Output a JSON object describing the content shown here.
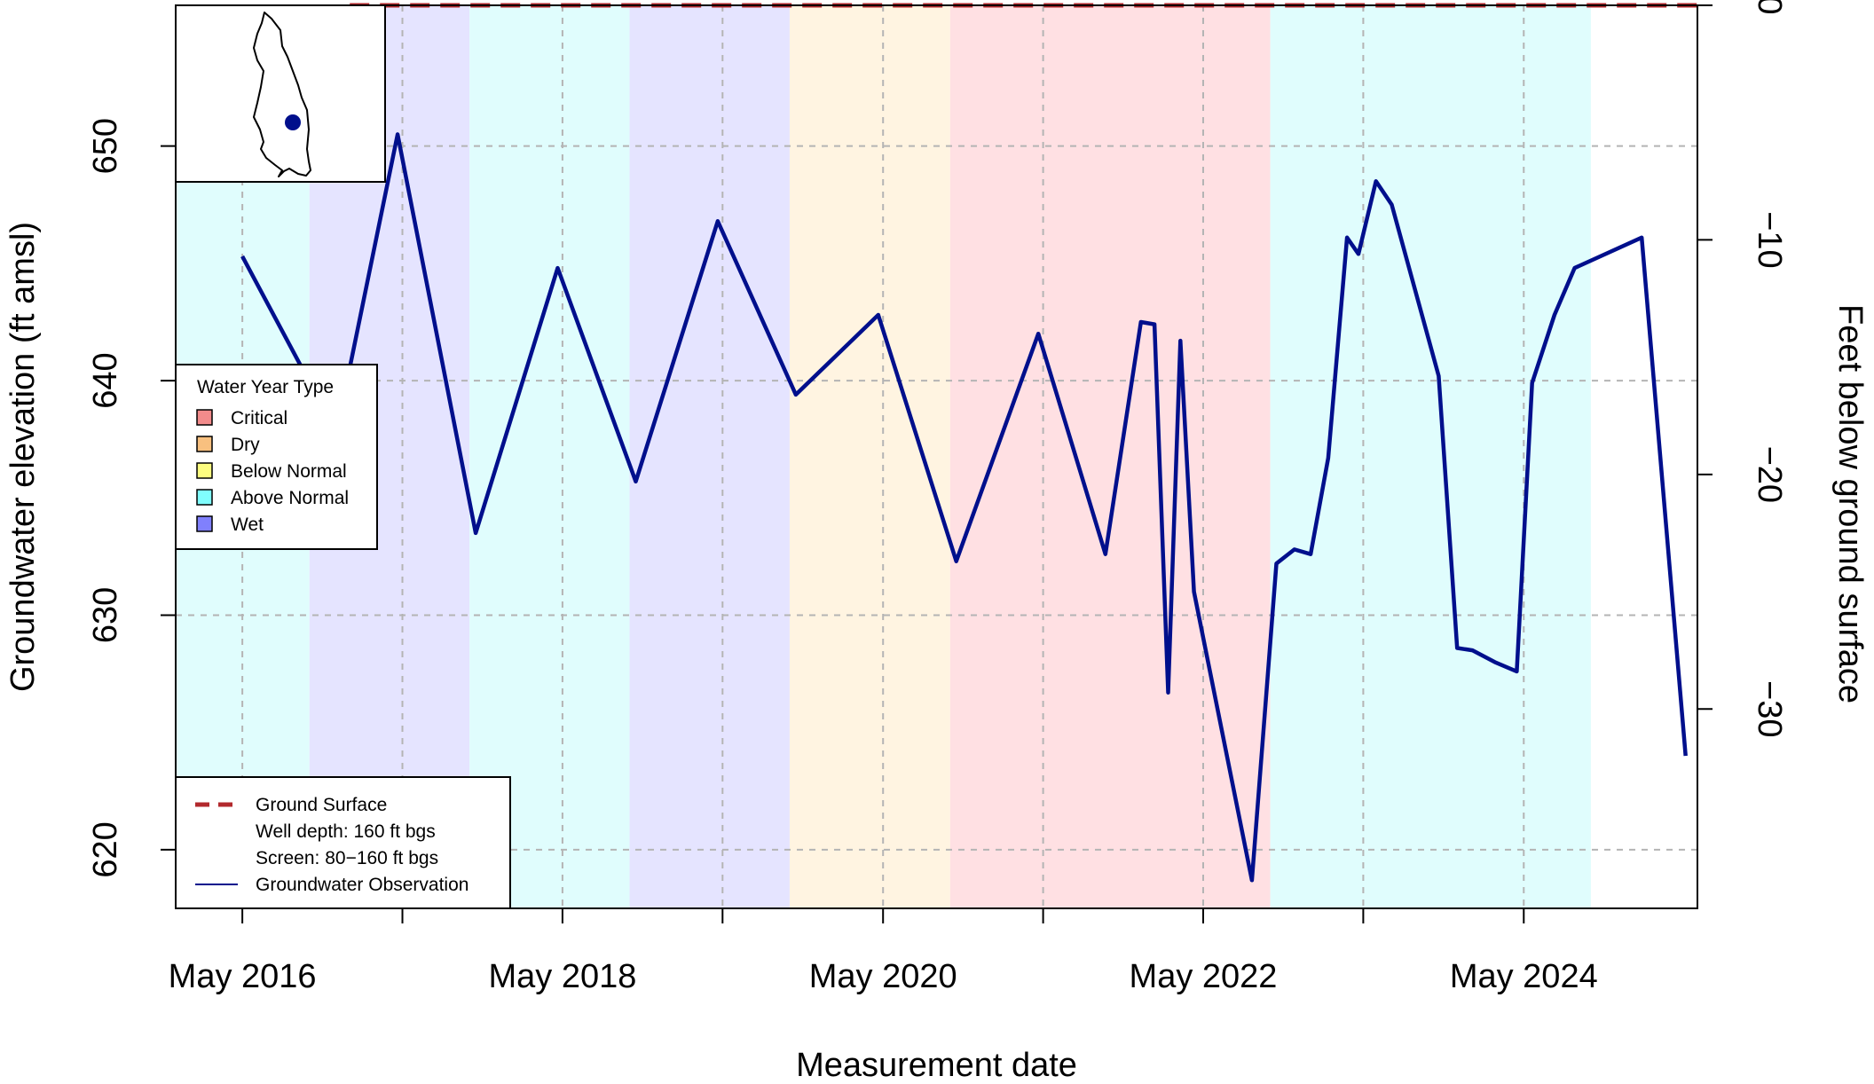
{
  "chart_data": {
    "type": "line",
    "title": "",
    "xlabel": "Measurement date",
    "ylabel": "Groundwater elevation (ft amsl)",
    "ylabel_right": "Feet below ground surface",
    "xlim": [
      "2015-12-01",
      "2025-06-01"
    ],
    "ylim": [
      617.5,
      656.0
    ],
    "ylim_right": [
      -38.5,
      0.0
    ],
    "y_ticks": [
      620,
      630,
      640,
      650
    ],
    "y_ticks_right": [
      0,
      -10,
      -20,
      -30
    ],
    "x_ticks": [
      {
        "date": "2016-05-01",
        "label": "May 2016"
      },
      {
        "date": "2017-05-01",
        "label": ""
      },
      {
        "date": "2018-05-01",
        "label": "May 2018"
      },
      {
        "date": "2019-05-01",
        "label": ""
      },
      {
        "date": "2020-05-01",
        "label": "May 2020"
      },
      {
        "date": "2021-05-01",
        "label": ""
      },
      {
        "date": "2022-05-01",
        "label": "May 2022"
      },
      {
        "date": "2023-05-01",
        "label": ""
      },
      {
        "date": "2024-05-01",
        "label": "May 2024"
      }
    ],
    "grid": true,
    "ground_surface_elevation": 656.0,
    "water_year_bands": [
      {
        "start": "2015-12-01",
        "end": "2016-10-01",
        "type": "Above Normal"
      },
      {
        "start": "2016-10-01",
        "end": "2017-10-01",
        "type": "Wet"
      },
      {
        "start": "2017-10-01",
        "end": "2018-10-01",
        "type": "Above Normal"
      },
      {
        "start": "2018-10-01",
        "end": "2019-10-01",
        "type": "Wet"
      },
      {
        "start": "2019-10-01",
        "end": "2020-10-01",
        "type": "Dry"
      },
      {
        "start": "2020-10-01",
        "end": "2022-10-01",
        "type": "Critical"
      },
      {
        "start": "2022-10-01",
        "end": "2024-10-01",
        "type": "Above Normal"
      }
    ],
    "band_colors": {
      "Critical": "#ffe0e3",
      "Dry": "#fff4e1",
      "Below Normal": "#fffbe0",
      "Above Normal": "#e0fdfd",
      "Wet": "#e5e4ff"
    },
    "series": [
      {
        "name": "Groundwater Observation",
        "color": "#000f8c",
        "points": [
          [
            "2016-05-01",
            645.3
          ],
          [
            "2016-09-15",
            640.5
          ],
          [
            "2016-12-15",
            639.0
          ],
          [
            "2017-04-20",
            650.5
          ],
          [
            "2017-10-15",
            633.5
          ],
          [
            "2018-04-20",
            644.8
          ],
          [
            "2018-10-15",
            635.7
          ],
          [
            "2019-04-20",
            646.8
          ],
          [
            "2019-10-15",
            639.4
          ],
          [
            "2020-04-20",
            642.8
          ],
          [
            "2020-10-15",
            632.3
          ],
          [
            "2021-04-20",
            642.0
          ],
          [
            "2021-09-20",
            632.6
          ],
          [
            "2021-12-10",
            642.5
          ],
          [
            "2022-01-10",
            642.4
          ],
          [
            "2022-02-10",
            626.7
          ],
          [
            "2022-03-10",
            641.7
          ],
          [
            "2022-04-10",
            631.0
          ],
          [
            "2022-08-20",
            618.7
          ],
          [
            "2022-10-15",
            632.2
          ],
          [
            "2022-11-25",
            632.8
          ],
          [
            "2023-01-01",
            632.6
          ],
          [
            "2023-02-10",
            636.7
          ],
          [
            "2023-03-25",
            646.1
          ],
          [
            "2023-04-20",
            645.4
          ],
          [
            "2023-05-30",
            648.5
          ],
          [
            "2023-07-05",
            647.5
          ],
          [
            "2023-10-20",
            640.2
          ],
          [
            "2023-12-01",
            628.6
          ],
          [
            "2024-01-05",
            628.5
          ],
          [
            "2024-02-25",
            628.0
          ],
          [
            "2024-04-15",
            627.6
          ],
          [
            "2024-05-20",
            639.9
          ],
          [
            "2024-07-10",
            642.8
          ],
          [
            "2024-08-25",
            644.8
          ],
          [
            "2025-01-25",
            646.1
          ],
          [
            "2025-05-05",
            624.0
          ]
        ]
      }
    ],
    "ground_surface_line": {
      "name": "Ground Surface",
      "color": "#b2292d",
      "value_right": 0
    },
    "legend_water_year": {
      "title": "Water Year Type",
      "position": "left",
      "items": [
        {
          "label": "Critical",
          "color": "#f28b8b"
        },
        {
          "label": "Dry",
          "color": "#f8c07f"
        },
        {
          "label": "Below Normal",
          "color": "#fdfd80"
        },
        {
          "label": "Above Normal",
          "color": "#80fdfd"
        },
        {
          "label": "Wet",
          "color": "#8080fd"
        }
      ]
    },
    "legend_lines": {
      "position": "bottom-left",
      "items": [
        {
          "label": "Ground Surface",
          "style": "dashed",
          "color": "#b2292d"
        },
        {
          "label": "Well depth: 160 ft bgs",
          "style": "none"
        },
        {
          "label": "Screen: 80−160 ft bgs",
          "style": "none"
        },
        {
          "label": "Groundwater Observation",
          "style": "solid",
          "color": "#000f8c"
        }
      ]
    },
    "inset_map": {
      "position": "top-left",
      "marker_color": "#000f8c"
    }
  }
}
